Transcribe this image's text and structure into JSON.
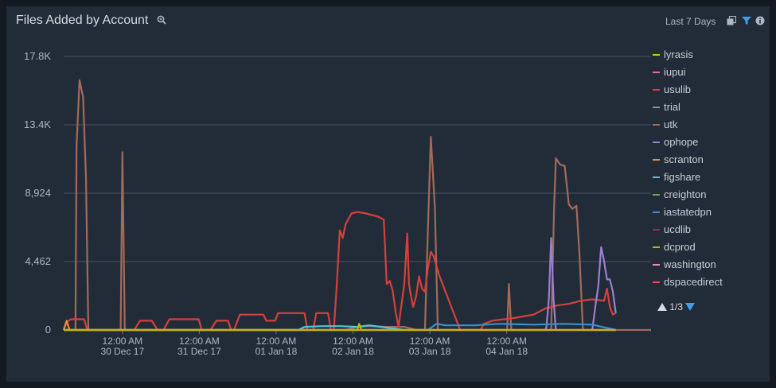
{
  "header": {
    "title": "Files Added by Account",
    "time_range": "Last 7 Days"
  },
  "legend": {
    "items": [
      {
        "label": "lyrasis",
        "color": "#cfc13a"
      },
      {
        "label": "iupui",
        "color": "#e06ab4"
      },
      {
        "label": "usulib",
        "color": "#d7403a"
      },
      {
        "label": "trial",
        "color": "#8a8f96"
      },
      {
        "label": "utk",
        "color": "#a36a5a"
      },
      {
        "label": "ophope",
        "color": "#9b7fd0"
      },
      {
        "label": "scranton",
        "color": "#f08a3c"
      },
      {
        "label": "figshare",
        "color": "#55c4dc"
      },
      {
        "label": "creighton",
        "color": "#6aa84f"
      },
      {
        "label": "iastatedpn",
        "color": "#3b8ed0"
      },
      {
        "label": "ucdlib",
        "color": "#c2185b"
      },
      {
        "label": "dcprod",
        "color": "#c8b400"
      },
      {
        "label": "washington",
        "color": "#f48fb1"
      },
      {
        "label": "dspacedirect",
        "color": "#e0524a"
      }
    ],
    "pager": "1/3"
  },
  "chart_data": {
    "type": "line",
    "title": "Files Added by Account",
    "ylim": [
      0,
      17848
    ],
    "y_ticks": [
      "0",
      "4,462",
      "8,924",
      "13.4K",
      "17.8K"
    ],
    "x_ticks": [
      {
        "time": "12:00 AM",
        "date": "30 Dec 17",
        "pos": 0.1
      },
      {
        "time": "12:00 AM",
        "date": "31 Dec 17",
        "pos": 0.2309
      },
      {
        "time": "12:00 AM",
        "date": "01 Jan 18",
        "pos": 0.3617
      },
      {
        "time": "12:00 AM",
        "date": "02 Jan 18",
        "pos": 0.4926
      },
      {
        "time": "12:00 AM",
        "date": "03 Jan 18",
        "pos": 0.6234
      },
      {
        "time": "12:00 AM",
        "date": "04 Jan 18",
        "pos": 0.7543
      }
    ],
    "series": [
      {
        "name": "utk",
        "color": "#a36a5a",
        "points": [
          [
            0,
            0
          ],
          [
            0.02,
            0
          ],
          [
            0.022,
            12000
          ],
          [
            0.027,
            16300
          ],
          [
            0.033,
            15200
          ],
          [
            0.038,
            10000
          ],
          [
            0.042,
            0
          ],
          [
            0.09,
            0
          ],
          [
            0.097,
            0
          ],
          [
            0.1,
            11600
          ],
          [
            0.104,
            0
          ],
          [
            0.48,
            0
          ],
          [
            0.49,
            100
          ],
          [
            0.5,
            200
          ],
          [
            0.52,
            250
          ],
          [
            0.55,
            200
          ],
          [
            0.58,
            200
          ],
          [
            0.6,
            0
          ],
          [
            0.615,
            0
          ],
          [
            0.62,
            6500
          ],
          [
            0.625,
            12600
          ],
          [
            0.632,
            8000
          ],
          [
            0.637,
            0
          ],
          [
            0.73,
            0
          ],
          [
            0.755,
            0
          ],
          [
            0.758,
            3000
          ],
          [
            0.762,
            0
          ],
          [
            0.83,
            0
          ],
          [
            0.835,
            8000
          ],
          [
            0.838,
            11200
          ],
          [
            0.845,
            10800
          ],
          [
            0.853,
            10700
          ],
          [
            0.86,
            8200
          ],
          [
            0.866,
            7900
          ],
          [
            0.873,
            8100
          ],
          [
            0.878,
            5000
          ],
          [
            0.884,
            0
          ],
          [
            1,
            0
          ]
        ]
      },
      {
        "name": "usulib",
        "color": "#d7403a",
        "points": [
          [
            0,
            0
          ],
          [
            0.005,
            500
          ],
          [
            0.012,
            700
          ],
          [
            0.018,
            700
          ],
          [
            0.028,
            700
          ],
          [
            0.035,
            700
          ],
          [
            0.04,
            0
          ],
          [
            0.07,
            0
          ],
          [
            0.11,
            0
          ],
          [
            0.12,
            0
          ],
          [
            0.13,
            600
          ],
          [
            0.15,
            600
          ],
          [
            0.16,
            0
          ],
          [
            0.17,
            0
          ],
          [
            0.18,
            700
          ],
          [
            0.22,
            700
          ],
          [
            0.23,
            700
          ],
          [
            0.235,
            0
          ],
          [
            0.25,
            0
          ],
          [
            0.26,
            600
          ],
          [
            0.28,
            600
          ],
          [
            0.285,
            0
          ],
          [
            0.29,
            0
          ],
          [
            0.3,
            1000
          ],
          [
            0.33,
            1000
          ],
          [
            0.34,
            1000
          ],
          [
            0.345,
            600
          ],
          [
            0.36,
            600
          ],
          [
            0.365,
            1100
          ],
          [
            0.4,
            1100
          ],
          [
            0.41,
            1100
          ],
          [
            0.415,
            0
          ],
          [
            0.425,
            0
          ],
          [
            0.43,
            1100
          ],
          [
            0.45,
            1100
          ],
          [
            0.455,
            0
          ],
          [
            0.46,
            0
          ],
          [
            0.465,
            3000
          ],
          [
            0.47,
            6500
          ],
          [
            0.475,
            6000
          ],
          [
            0.48,
            6900
          ],
          [
            0.49,
            7600
          ],
          [
            0.5,
            7700
          ],
          [
            0.515,
            7600
          ],
          [
            0.525,
            7500
          ],
          [
            0.535,
            7400
          ],
          [
            0.54,
            7300
          ],
          [
            0.545,
            7200
          ],
          [
            0.55,
            3000
          ],
          [
            0.555,
            3200
          ],
          [
            0.56,
            2600
          ],
          [
            0.565,
            1200
          ],
          [
            0.57,
            200
          ],
          [
            0.58,
            3000
          ],
          [
            0.585,
            6300
          ],
          [
            0.588,
            3000
          ],
          [
            0.59,
            2500
          ],
          [
            0.595,
            1500
          ],
          [
            0.6,
            2200
          ],
          [
            0.605,
            3500
          ],
          [
            0.61,
            2700
          ],
          [
            0.615,
            2500
          ],
          [
            0.62,
            4000
          ],
          [
            0.625,
            5100
          ],
          [
            0.63,
            4800
          ],
          [
            0.64,
            3500
          ],
          [
            0.65,
            2500
          ],
          [
            0.66,
            1500
          ],
          [
            0.665,
            1000
          ],
          [
            0.675,
            0
          ],
          [
            0.68,
            0
          ],
          [
            0.71,
            0
          ],
          [
            0.715,
            400
          ],
          [
            0.73,
            600
          ],
          [
            0.75,
            700
          ],
          [
            0.77,
            800
          ],
          [
            0.8,
            1000
          ],
          [
            0.82,
            1400
          ],
          [
            0.84,
            1600
          ],
          [
            0.86,
            1700
          ],
          [
            0.88,
            1900
          ],
          [
            0.9,
            2000
          ],
          [
            0.92,
            1900
          ],
          [
            0.925,
            2700
          ],
          [
            0.93,
            1500
          ],
          [
            0.935,
            1000
          ],
          [
            0.94,
            1100
          ]
        ]
      },
      {
        "name": "ophope",
        "color": "#9b7fd0",
        "points": [
          [
            0,
            0
          ],
          [
            0.82,
            0
          ],
          [
            0.822,
            200
          ],
          [
            0.826,
            2000
          ],
          [
            0.83,
            6000
          ],
          [
            0.834,
            2000
          ],
          [
            0.838,
            0
          ],
          [
            0.9,
            0
          ],
          [
            0.905,
            1500
          ],
          [
            0.91,
            2800
          ],
          [
            0.915,
            5400
          ],
          [
            0.92,
            4500
          ],
          [
            0.925,
            3300
          ],
          [
            0.93,
            3300
          ],
          [
            0.935,
            2500
          ],
          [
            0.94,
            1100
          ]
        ]
      },
      {
        "name": "iastatedpn",
        "color": "#3b8ed0",
        "points": [
          [
            0,
            0
          ],
          [
            0.62,
            0
          ],
          [
            0.635,
            400
          ],
          [
            0.65,
            300
          ],
          [
            0.7,
            300
          ],
          [
            0.74,
            400
          ],
          [
            0.8,
            350
          ],
          [
            0.85,
            400
          ],
          [
            0.9,
            350
          ],
          [
            0.94,
            0
          ]
        ]
      },
      {
        "name": "figshare",
        "color": "#55c4dc",
        "points": [
          [
            0,
            0
          ],
          [
            0.4,
            0
          ],
          [
            0.41,
            200
          ],
          [
            0.44,
            250
          ],
          [
            0.47,
            250
          ],
          [
            0.5,
            200
          ],
          [
            0.52,
            300
          ],
          [
            0.54,
            200
          ],
          [
            0.56,
            100
          ],
          [
            0.58,
            0
          ]
        ]
      },
      {
        "name": "scranton",
        "color": "#f08a3c",
        "points": [
          [
            0,
            0
          ],
          [
            0.005,
            600
          ],
          [
            0.01,
            0
          ],
          [
            0.94,
            0
          ]
        ]
      },
      {
        "name": "dcprod",
        "color": "#c8b400",
        "points": [
          [
            0,
            0
          ],
          [
            0.5,
            0
          ],
          [
            0.503,
            400
          ],
          [
            0.507,
            0
          ],
          [
            0.94,
            0
          ]
        ]
      }
    ]
  }
}
